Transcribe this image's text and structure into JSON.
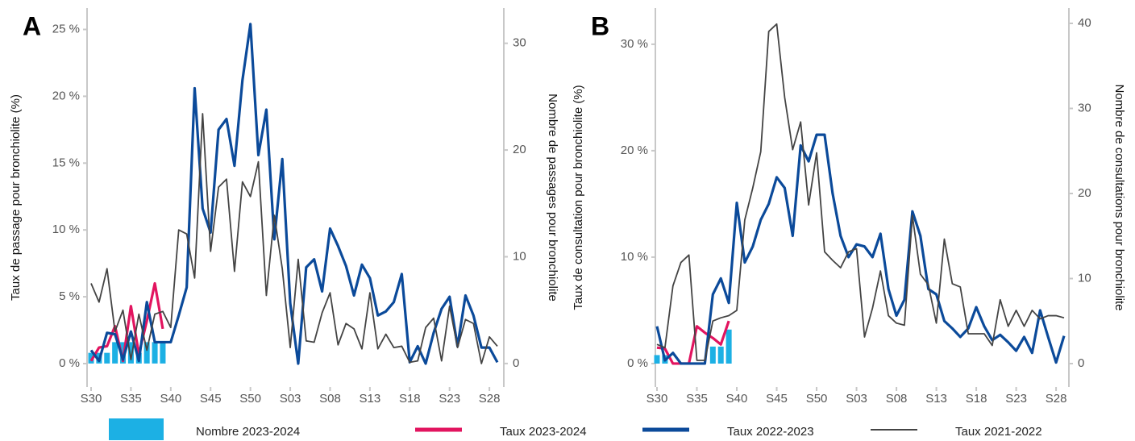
{
  "chart_data": [
    {
      "type": "combo",
      "label": "A",
      "y_label": "Taux de passage pour bronchiolite (%)",
      "y2_label": "Nombre de passages pour bronchiolite",
      "categories": [
        "S30",
        null,
        null,
        null,
        null,
        "S35",
        null,
        null,
        null,
        null,
        "S40",
        null,
        null,
        null,
        null,
        "S45",
        null,
        null,
        null,
        null,
        "S50",
        null,
        null,
        null,
        null,
        "S03",
        null,
        null,
        null,
        null,
        "S08",
        null,
        null,
        null,
        null,
        "S13",
        null,
        null,
        null,
        null,
        "S18",
        null,
        null,
        null,
        null,
        "S23",
        null,
        null,
        null,
        null,
        "S28",
        null
      ],
      "ylim": [
        -1.75,
        26.6
      ],
      "yticks": [
        {
          "value": 0,
          "label": "0 %"
        },
        {
          "value": 5,
          "label": "5 %"
        },
        {
          "value": 10,
          "label": "10 %"
        },
        {
          "value": 15,
          "label": "15 %"
        },
        {
          "value": 20,
          "label": "20 %"
        },
        {
          "value": 25,
          "label": "25 %"
        }
      ],
      "y2lim": [
        -2.2,
        33.3
      ],
      "y2ticks": [
        0,
        10,
        20,
        30
      ],
      "legend": "bottom",
      "series": [
        {
          "name": "Nombre 2023-2024",
          "type": "bar",
          "axis": "y2",
          "color": "#1cb0e4",
          "values": [
            1,
            1,
            1,
            2,
            2,
            2,
            1,
            2,
            2,
            2,
            null,
            null,
            null,
            null,
            null,
            null,
            null,
            null,
            null,
            null,
            null,
            null,
            null,
            null,
            null,
            null,
            null,
            null,
            null,
            null,
            null,
            null,
            null,
            null,
            null,
            null,
            null,
            null,
            null,
            null,
            null,
            null,
            null,
            null,
            null,
            null,
            null,
            null,
            null,
            null,
            null,
            null
          ]
        },
        {
          "name": "Taux 2023-2024",
          "type": "line",
          "color": "#e2145f",
          "values": [
            0.2,
            1.2,
            1.3,
            2.8,
            0.2,
            4.3,
            0.7,
            3.2,
            6.0,
            2.6,
            null,
            null,
            null,
            null,
            null,
            null,
            null,
            null,
            null,
            null,
            null,
            null,
            null,
            null,
            null,
            null,
            null,
            null,
            null,
            null,
            null,
            null,
            null,
            null,
            null,
            null,
            null,
            null,
            null,
            null,
            null,
            null,
            null,
            null,
            null,
            null,
            null,
            null,
            null,
            null,
            null,
            null
          ]
        },
        {
          "name": "Taux 2022-2023",
          "type": "line",
          "color": "#0b4a9a",
          "values": [
            1.0,
            0.2,
            2.3,
            2.2,
            0.3,
            2.4,
            0.2,
            4.6,
            1.6,
            1.6,
            1.6,
            3.6,
            5.7,
            20.6,
            11.6,
            9.8,
            17.5,
            18.3,
            14.8,
            21.2,
            25.4,
            15.6,
            19.0,
            9.3,
            15.3,
            4.5,
            0,
            7.2,
            7.8,
            5.4,
            10.1,
            8.8,
            7.3,
            5.1,
            7.4,
            6.4,
            3.6,
            3.9,
            4.6,
            6.7,
            0.1,
            1.3,
            0,
            2.3,
            4.1,
            5.0,
            1.3,
            5.1,
            3.6,
            1.2,
            1.2,
            0.1
          ]
        },
        {
          "name": "Taux 2021-2022",
          "type": "line",
          "color": "#444444",
          "values": [
            6.0,
            4.6,
            7.1,
            2.4,
            4.0,
            0.3,
            3.7,
            1.0,
            3.7,
            3.9,
            2.7,
            10.0,
            9.7,
            6.4,
            18.7,
            8.4,
            13.2,
            13.8,
            6.9,
            13.6,
            12.5,
            15.1,
            5.1,
            11.1,
            7.1,
            1.2,
            7.8,
            1.7,
            1.6,
            3.8,
            5.3,
            1.4,
            3.0,
            2.6,
            1.1,
            5.3,
            1.1,
            2.2,
            1.2,
            1.3,
            0.1,
            0.2,
            2.7,
            3.4,
            0.2,
            4.3,
            1.2,
            3.3,
            3.0,
            0.0,
            2.0,
            1.3
          ]
        }
      ]
    },
    {
      "type": "combo",
      "label": "B",
      "y_label": "Taux de consultation pour bronchiolite (%)",
      "y2_label": "Nombre de consultations pour bronchiolite",
      "categories": [
        "S30",
        null,
        null,
        null,
        null,
        "S35",
        null,
        null,
        null,
        null,
        "S40",
        null,
        null,
        null,
        null,
        "S45",
        null,
        null,
        null,
        null,
        "S50",
        null,
        null,
        null,
        null,
        "S03",
        null,
        null,
        null,
        null,
        "S08",
        null,
        null,
        null,
        null,
        "S13",
        null,
        null,
        null,
        null,
        "S18",
        null,
        null,
        null,
        null,
        "S23",
        null,
        null,
        null,
        null,
        "S28",
        null
      ],
      "ylim": [
        -2.2,
        33.4
      ],
      "yticks": [
        {
          "value": 0,
          "label": "0 %"
        },
        {
          "value": 10,
          "label": "10 %"
        },
        {
          "value": 20,
          "label": "20 %"
        },
        {
          "value": 30,
          "label": "30 %"
        }
      ],
      "y2lim": [
        -2.75,
        41.8
      ],
      "y2ticks": [
        0,
        10,
        20,
        30,
        40
      ],
      "series": [
        {
          "type": "bar",
          "axis": "y2",
          "color": "#1cb0e4",
          "values": [
            1,
            1,
            0,
            0,
            0,
            0,
            0,
            2,
            2,
            4,
            null,
            null,
            null,
            null,
            null,
            null,
            null,
            null,
            null,
            null,
            null,
            null,
            null,
            null,
            null,
            null,
            null,
            null,
            null,
            null,
            null,
            null,
            null,
            null,
            null,
            null,
            null,
            null,
            null,
            null,
            null,
            null,
            null,
            null,
            null,
            null,
            null,
            null,
            null,
            null,
            null,
            null
          ]
        },
        {
          "type": "line",
          "color": "#e2145f",
          "values": [
            1.5,
            1.4,
            0,
            0,
            0,
            3.5,
            2.9,
            2.4,
            1.8,
            4.0,
            null,
            null,
            null,
            null,
            null,
            null,
            null,
            null,
            null,
            null,
            null,
            null,
            null,
            null,
            null,
            null,
            null,
            null,
            null,
            null,
            null,
            null,
            null,
            null,
            null,
            null,
            null,
            null,
            null,
            null,
            null,
            null,
            null,
            null,
            null,
            null,
            null,
            null,
            null,
            null,
            null,
            null
          ]
        },
        {
          "type": "line",
          "color": "#0b4a9a",
          "values": [
            3.5,
            0.3,
            1.0,
            0,
            0,
            0,
            0,
            6.5,
            8.0,
            5.7,
            15.1,
            9.5,
            11.0,
            13.5,
            15.0,
            17.5,
            16.5,
            12.0,
            20.5,
            19.0,
            21.5,
            21.5,
            16.0,
            12.0,
            10.0,
            11.2,
            11.0,
            10.0,
            12.2,
            7.0,
            4.5,
            6.0,
            14.3,
            12.0,
            7.0,
            6.5,
            4.0,
            3.3,
            2.5,
            3.3,
            5.3,
            3.5,
            2.2,
            2.7,
            2.0,
            1.2,
            2.5,
            1.0,
            5.0,
            2.5,
            0.1,
            2.6
          ]
        },
        {
          "type": "line",
          "color": "#444444",
          "values": [
            1.8,
            1.5,
            7.3,
            9.5,
            10.2,
            0.3,
            0.3,
            4.0,
            4.3,
            4.5,
            5.0,
            13.5,
            16.5,
            19.9,
            31.2,
            31.9,
            25.0,
            20.1,
            22.7,
            14.9,
            19.8,
            10.5,
            9.7,
            9.0,
            10.5,
            10.8,
            2.5,
            5.2,
            8.7,
            4.5,
            3.8,
            3.6,
            13.9,
            8.4,
            7.4,
            3.8,
            11.7,
            7.5,
            7.2,
            2.8,
            2.8,
            2.8,
            1.7,
            6.0,
            3.5,
            5.0,
            3.5,
            5.0,
            4.2,
            4.5,
            4.5,
            4.3
          ]
        }
      ]
    }
  ]
}
